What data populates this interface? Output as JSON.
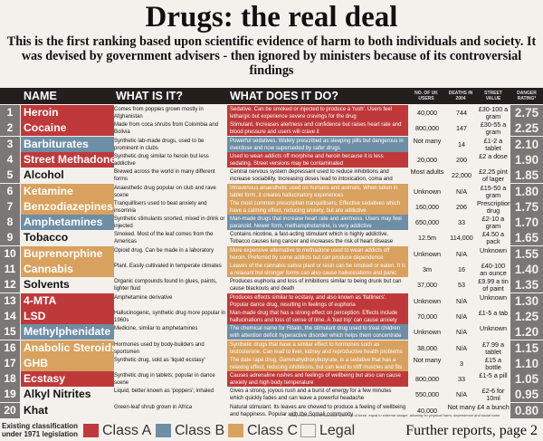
{
  "title": "Drugs: the real deal",
  "subtitle": "This is the first ranking based upon scientific evidence of harm to both individuals and society. It was devised by government advisers - then ignored by ministers because of its controversial findings",
  "headers": {
    "name": "NAME",
    "what": "WHAT IS IT?",
    "does": "WHAT DOES IT DO?",
    "users": "NO. OF UK USERS",
    "deaths": "DEATHS IN 2004",
    "price": "STREET VALUE",
    "rating": "DANGER RATING*"
  },
  "colors": {
    "classA": "#c0393a",
    "classB": "#6e8ea6",
    "classC": "#d9a15e",
    "legal": "#f4f1ec"
  },
  "rows": [
    {
      "num": "1",
      "name": "Heroin",
      "cls": "classA",
      "what": "Comes from poppies grown mostly in Afghanistan",
      "does": "Sedative. Can be smoked or injected to produce a 'rush'. Users feel lethargic but experience severe cravings for the drug",
      "users": "40,000",
      "deaths": "744",
      "price": "£30-100 a gram",
      "rating": "2.75"
    },
    {
      "num": "2",
      "name": "Cocaine",
      "cls": "classA",
      "what": "Made from coca shrubs from Colombia and Bolivia",
      "does": "Stimulant. Increases alertness and confidence but raises heart rate and blood pressure and users will crave it",
      "users": "800,000",
      "deaths": "147",
      "price": "£30-55 a gram",
      "rating": "2.25"
    },
    {
      "num": "3",
      "name": "Barbiturates",
      "cls": "classB",
      "what": "Synthetic lab-made drugs, used to be prominent in clubs",
      "does": "Powerful sedatives. Widely prescribed as sleeping pills but dangerous in overdose and now superseded by safer drugs",
      "users": "Not many",
      "deaths": "14",
      "price": "£1-2 a tablet",
      "rating": "2.10"
    },
    {
      "num": "4",
      "name": "Street Methadone",
      "cls": "classA",
      "what": "Synthetic drug similar to heroin but less addictive",
      "does": "Used to wean addicts off morphine and heroin because it is less sedating. Street versions may be contaminated",
      "users": "20,000",
      "deaths": "200",
      "price": "£2 a dose",
      "rating": "1.90"
    },
    {
      "num": "5",
      "name": "Alcohol",
      "cls": "legal",
      "what": "Brewed across the world in many different forms",
      "does": "Central nervous system depressant used to reduce inhibitions and increase sociability. Increasing doses lead to intoxication, coma and respiratory failure",
      "users": "Most adults",
      "deaths": "22,000",
      "price": "£2.25 pint of lager",
      "rating": "1.85"
    },
    {
      "num": "6",
      "name": "Ketamine",
      "cls": "classC",
      "what": "Anaesthetic drug popular on club and rave scene",
      "does": "Intravenous anaesthetic used on humans and animals. When taken in tablet form, it creates hallucinatory experiences",
      "users": "Unknown",
      "deaths": "N/A",
      "price": "£15-50 a gram",
      "rating": "1.80"
    },
    {
      "num": "7",
      "name": "Benzodiazepines",
      "cls": "classC",
      "what": "Tranquillisers used to beat anxiety and insomnia",
      "does": "The most common prescription tranquillisers. Effective sedatives which have a calming effect, reducing anxiety, but are addictive",
      "users": "160,000",
      "deaths": "206",
      "price": "Prescription drug",
      "rating": "1.75"
    },
    {
      "num": "8",
      "name": "Amphetamines",
      "cls": "classB",
      "what": "Synthetic stimulants snorted, mixed in drink or injected",
      "does": "Man-made drugs that increase heart rate and alertness. Users may feel paranoid. Newer form, methamphetamine, is very addictive",
      "users": "650,000",
      "deaths": "33",
      "price": "£2-10 a gram",
      "rating": "1.70"
    },
    {
      "num": "9",
      "name": "Tobacco",
      "cls": "legal",
      "what": "Smoked. Most of the leaf comes from the Americas",
      "does": "Contains nicotine, a fast-acting stimulant which is highly addictive. Tobacco causes lung cancer and increases the risk of heart disease",
      "users": "12.5m",
      "deaths": "114,000",
      "price": "£4.50 a pack",
      "rating": "1.65"
    },
    {
      "num": "10",
      "name": "Buprenorphine",
      "cls": "classC",
      "what": "Opioid drug. Can be made in a laboratory",
      "does": "More expensive alternative to methadone used to wean addicts off heroin. Preferred by some addicts but can produce dependence",
      "users": "Unknown",
      "deaths": "N/A",
      "price": "Unknown",
      "rating": "1.55"
    },
    {
      "num": "11",
      "name": "Cannabis",
      "cls": "classC",
      "what": "Plant. Easily cultivated in temperate climates",
      "does": "Leaves of the cannabis sativa plant or resin can be smoked or eaten. It is a relaxant but stronger forms can also cause hallucinations and panic attacks",
      "users": "3m",
      "deaths": "16",
      "price": "£40-100 an ounce",
      "rating": "1.40"
    },
    {
      "num": "12",
      "name": "Solvents",
      "cls": "legal",
      "what": "Organic compounds found in glues, paints, lighter fluid",
      "does": "Produces euphoria and loss of inhibitions similar to being drunk but can cause blackouts and death",
      "users": "37,000",
      "deaths": "53",
      "price": "£9.99 a tin of paint",
      "rating": "1.35"
    },
    {
      "num": "13",
      "name": "4-MTA",
      "cls": "classA",
      "what": "Amphetamine derivative",
      "does": "Produces effects similar to ecstasy, and also known as 'flatliners'. Popular dance drug, resulting in feelings of euphoria",
      "users": "Unknown",
      "deaths": "N/A",
      "price": "Unknown",
      "rating": "1.30"
    },
    {
      "num": "14",
      "name": "LSD",
      "cls": "classA",
      "what": "Hallucinogenic, synthetic drug more popular in 1960s",
      "does": "Man-made drug that has a strong effect on perception. Effects include hallucinations and loss of sense of time. A 'bad trip' can cause anxiety",
      "users": "70,000",
      "deaths": "N/A",
      "price": "£1-5 a tab",
      "rating": "1.25"
    },
    {
      "num": "15",
      "name": "Methylphenidate",
      "cls": "classB",
      "what": "Medicine, similar to amphetamines",
      "does": "The chemical name for Ritalin, the stimulant drug used to treat children with attention deficit hyperactive disorder which helps them concentrate",
      "users": "Unknown",
      "deaths": "N/A",
      "price": "Unknown",
      "rating": "1.20"
    },
    {
      "num": "16",
      "name": "Anabolic Steroids",
      "cls": "classC",
      "what": "Hormones used by body-builders and sportsmen",
      "does": "Synthetic drugs that have a similar effect to hormones such as testosterone. Can lead to liver, kidney and reproductive health problems",
      "users": "38,000",
      "deaths": "N/A",
      "price": "£7.99 a tablet",
      "rating": "1.15"
    },
    {
      "num": "17",
      "name": "GHB",
      "cls": "classC",
      "what": "Synthetic drug, sold as 'liquid ecstasy'",
      "does": "The date rape drug, Gammahydroxybutyrate, is a sedative that has a relaxing effect, reducing inhibitions, but can lead to stiff muscles and fits",
      "users": "Not many",
      "deaths": "3",
      "price": "£15 a bottle",
      "rating": "1.10"
    },
    {
      "num": "18",
      "name": "Ecstasy",
      "cls": "classA",
      "what": "Synthetic drug in tablets; popular in dance scene",
      "does": "Causes adrenaline rushes and feelings of wellbeing but also can cause anxiety and high body temperature",
      "users": "800,000",
      "deaths": "33",
      "price": "£1-5 a pill",
      "rating": "1.05"
    },
    {
      "num": "19",
      "name": "Alkyl Nitrites",
      "cls": "legal",
      "what": "Liquid, better known as 'poppers'; inhaled",
      "does": "Gives a strong, joyous rush and a burst of energy for a few minutes which quickly fades and can leave a powerful headache",
      "users": "550,000",
      "deaths": "N/A",
      "price": "£2-6 for 10ml",
      "rating": "0.95"
    },
    {
      "num": "20",
      "name": "Khat",
      "cls": "legal",
      "what": "Green-leaf shrub grown in Africa",
      "does": "Natural stimulant. Its leaves are chewed to produce a feeling of wellbeing and happiness. Popular with the Somali community",
      "users": "40,000",
      "deaths": "Not many",
      "price": "£4 a bunch",
      "rating": "0.80"
    }
  ],
  "footer": {
    "label": "Existing classification under 1971 legislation",
    "classA": "Class A",
    "classB": "Class B",
    "classC": "Class C",
    "legal": "Legal",
    "further": "Further reports, page 2",
    "footnote": "*Independent experts calculate score out of three, equal to extreme danger, allowing for physical harm, dependence and social harm"
  }
}
